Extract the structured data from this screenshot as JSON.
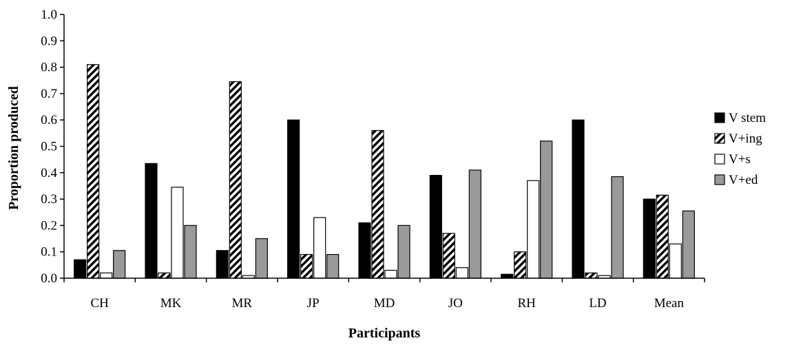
{
  "chart_data": {
    "type": "bar",
    "title": "",
    "xlabel": "Participants",
    "ylabel": "Proportion produced",
    "ylim": [
      0,
      1.0
    ],
    "yticks": [
      "0.0",
      "0.1",
      "0.2",
      "0.3",
      "0.4",
      "0.5",
      "0.6",
      "0.7",
      "0.8",
      "0.9",
      "1.0"
    ],
    "categories": [
      "CH",
      "MK",
      "MR",
      "JP",
      "MD",
      "JO",
      "RH",
      "LD",
      "Mean"
    ],
    "legend_position": "right",
    "grid": false,
    "series": [
      {
        "name": "V stem",
        "fill": "solid-black",
        "color": "#000000",
        "values": [
          0.07,
          0.435,
          0.105,
          0.6,
          0.21,
          0.39,
          0.015,
          0.6,
          0.3
        ]
      },
      {
        "name": "V+ing",
        "fill": "hatched",
        "color": "#000000",
        "values": [
          0.81,
          0.02,
          0.745,
          0.09,
          0.56,
          0.17,
          0.1,
          0.02,
          0.315
        ]
      },
      {
        "name": "V+s",
        "fill": "white",
        "color": "#ffffff",
        "values": [
          0.02,
          0.345,
          0.01,
          0.23,
          0.03,
          0.04,
          0.37,
          0.01,
          0.13
        ]
      },
      {
        "name": "V+ed",
        "fill": "gray",
        "color": "#9a9a9a",
        "values": [
          0.105,
          0.2,
          0.15,
          0.09,
          0.2,
          0.41,
          0.52,
          0.385,
          0.255
        ]
      }
    ]
  }
}
